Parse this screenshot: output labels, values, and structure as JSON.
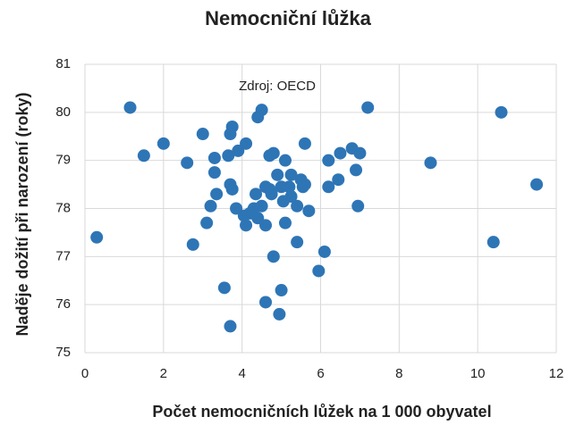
{
  "chart_data": {
    "type": "scatter",
    "title": "Nemocniční lůžka",
    "x_label": "Počet nemocničních lůžek na 1 000 obyvatel",
    "y_label": "Naděje dožití při narození (roky)",
    "annotation": "Zdroj: OECD",
    "color": "#2e75b6",
    "xlim": [
      0,
      12
    ],
    "xticks": [
      0,
      2,
      4,
      6,
      8,
      10,
      12
    ],
    "ylim": [
      75,
      81
    ],
    "yticks": [
      75,
      76,
      77,
      78,
      79,
      80,
      81
    ],
    "grid": true,
    "x": [
      0.3,
      1.15,
      1.5,
      2.0,
      2.6,
      2.75,
      3.0,
      3.1,
      3.2,
      3.3,
      3.3,
      3.35,
      3.55,
      3.7,
      3.65,
      3.7,
      3.75,
      3.7,
      3.75,
      3.85,
      3.9,
      4.1,
      4.05,
      4.1,
      4.2,
      4.3,
      4.35,
      4.4,
      4.5,
      4.6,
      4.5,
      4.4,
      4.6,
      4.6,
      4.7,
      4.7,
      4.8,
      4.8,
      4.75,
      4.95,
      5.0,
      4.9,
      5.0,
      5.05,
      5.1,
      5.2,
      5.1,
      5.25,
      5.25,
      5.4,
      5.4,
      5.5,
      5.55,
      5.6,
      5.7,
      5.6,
      5.95,
      6.1,
      6.2,
      6.2,
      6.45,
      6.5,
      6.8,
      6.9,
      6.95,
      7.0,
      7.2,
      8.8,
      10.4,
      10.6,
      11.5
    ],
    "values": [
      77.4,
      80.1,
      79.1,
      79.35,
      78.95,
      77.25,
      79.55,
      77.7,
      78.05,
      79.05,
      78.75,
      78.3,
      76.35,
      75.55,
      79.1,
      79.55,
      79.7,
      78.5,
      78.4,
      78.0,
      79.2,
      79.35,
      77.85,
      77.65,
      77.9,
      78.0,
      78.3,
      77.8,
      78.05,
      77.65,
      80.05,
      79.9,
      76.05,
      78.45,
      78.4,
      79.1,
      79.15,
      77.0,
      78.3,
      75.8,
      76.3,
      78.7,
      78.45,
      78.15,
      79.0,
      78.45,
      77.7,
      78.7,
      78.25,
      78.05,
      77.3,
      78.6,
      78.45,
      79.35,
      77.95,
      78.5,
      76.7,
      77.1,
      79.0,
      78.45,
      78.6,
      79.15,
      79.25,
      78.8,
      78.05,
      79.15,
      80.1,
      78.95,
      77.3,
      80.0,
      78.5
    ]
  }
}
